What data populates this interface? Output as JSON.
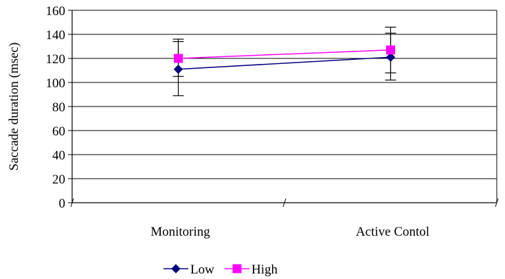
{
  "chart_data": {
    "type": "line",
    "title": "",
    "xlabel": "",
    "ylabel": "Saccade duration (msec)",
    "ylim": [
      0,
      160
    ],
    "yticks": [
      0,
      20,
      40,
      60,
      80,
      100,
      120,
      140,
      160
    ],
    "grid": true,
    "legend_position": "bottom",
    "categories": [
      "Monitoring",
      "Active Contol"
    ],
    "series": [
      {
        "name": "Low",
        "color": "#000080",
        "marker": "diamond",
        "values": [
          111,
          121
        ],
        "error_low": [
          89,
          102
        ],
        "error_high": [
          134,
          141
        ]
      },
      {
        "name": "High",
        "color": "#ff00ff",
        "marker": "square",
        "values": [
          120,
          127
        ],
        "error_low": [
          105,
          108
        ],
        "error_high": [
          136,
          146
        ]
      }
    ]
  }
}
